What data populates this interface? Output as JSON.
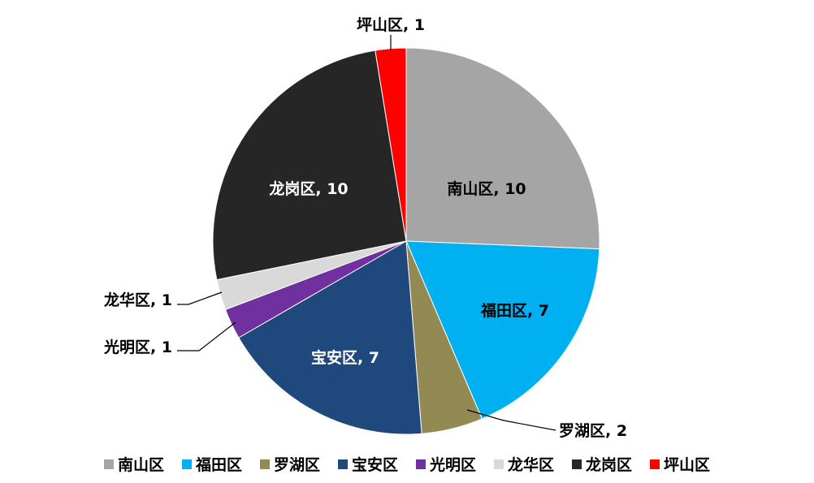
{
  "chart_data": {
    "type": "pie",
    "title": "",
    "categories": [
      "南山区",
      "福田区",
      "罗湖区",
      "宝安区",
      "光明区",
      "龙华区",
      "龙岗区",
      "坪山区"
    ],
    "values": [
      10,
      7,
      2,
      7,
      1,
      1,
      10,
      1
    ],
    "colors": [
      "#a5a5a5",
      "#00b0f0",
      "#938953",
      "#1f497d",
      "#7030a0",
      "#d9d9d9",
      "#262626",
      "#ff0000"
    ],
    "data_labels": [
      "南山区, 10",
      "福田区, 7",
      "罗湖区, 2",
      "宝安区, 7",
      "光明区, 1",
      "龙华区, 1",
      "龙岗区, 10",
      "坪山区, 1"
    ],
    "legend_position": "bottom",
    "start_angle": "12 o'clock",
    "direction": "clockwise"
  }
}
